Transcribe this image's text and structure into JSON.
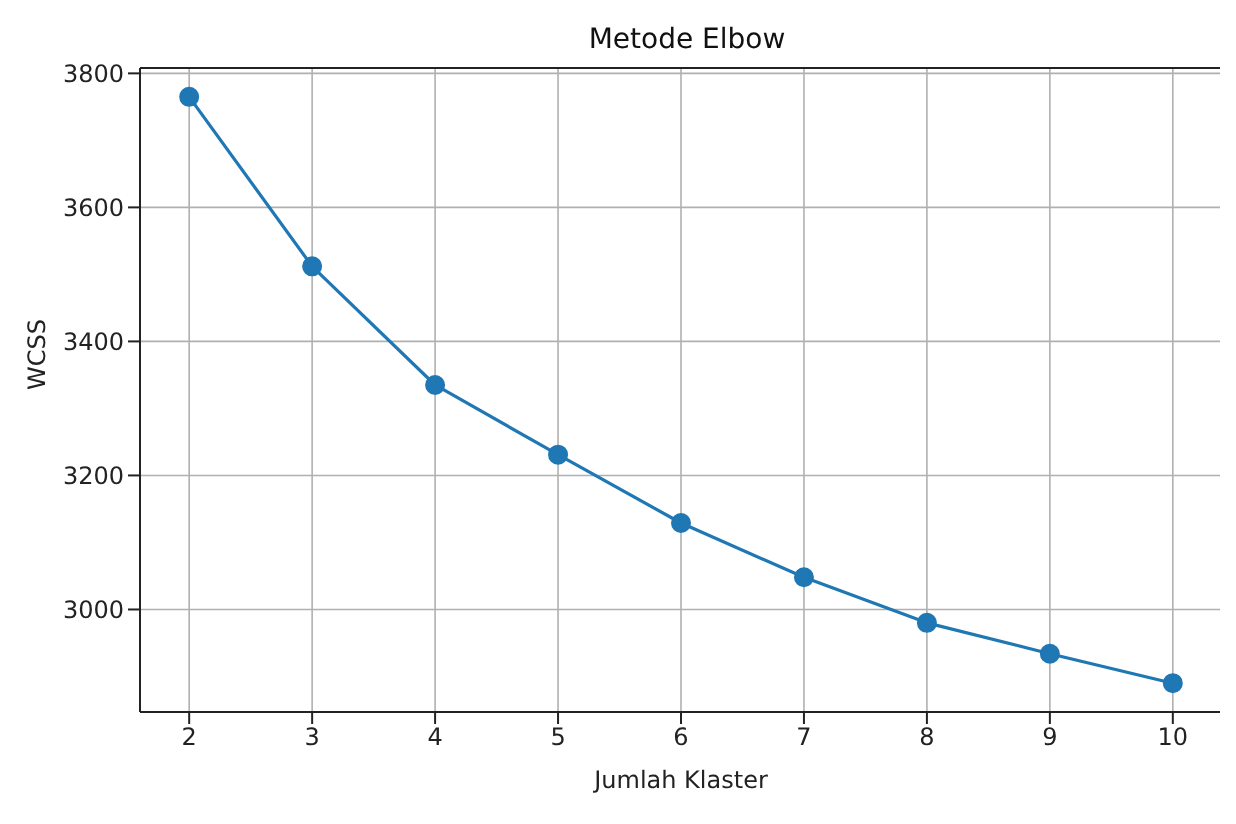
{
  "chart_data": {
    "type": "line",
    "title": "Metode Elbow",
    "xlabel": "Jumlah Klaster",
    "ylabel": "WCSS",
    "x": [
      2,
      3,
      4,
      5,
      6,
      7,
      8,
      9,
      10
    ],
    "series": [
      {
        "color": "#1f77b4",
        "values": [
          3765,
          3512,
          3335,
          3231,
          3129,
          3048,
          2980,
          2934,
          2890
        ]
      }
    ],
    "xlim": [
      1.6,
      10.4
    ],
    "xticks": [
      2,
      3,
      4,
      5,
      6,
      7,
      8,
      9,
      10
    ],
    "ylim": [
      2847,
      3808
    ],
    "yticks": [
      3000,
      3200,
      3400,
      3600,
      3800
    ],
    "grid": true,
    "marker": "circle",
    "line_style": "solid"
  }
}
